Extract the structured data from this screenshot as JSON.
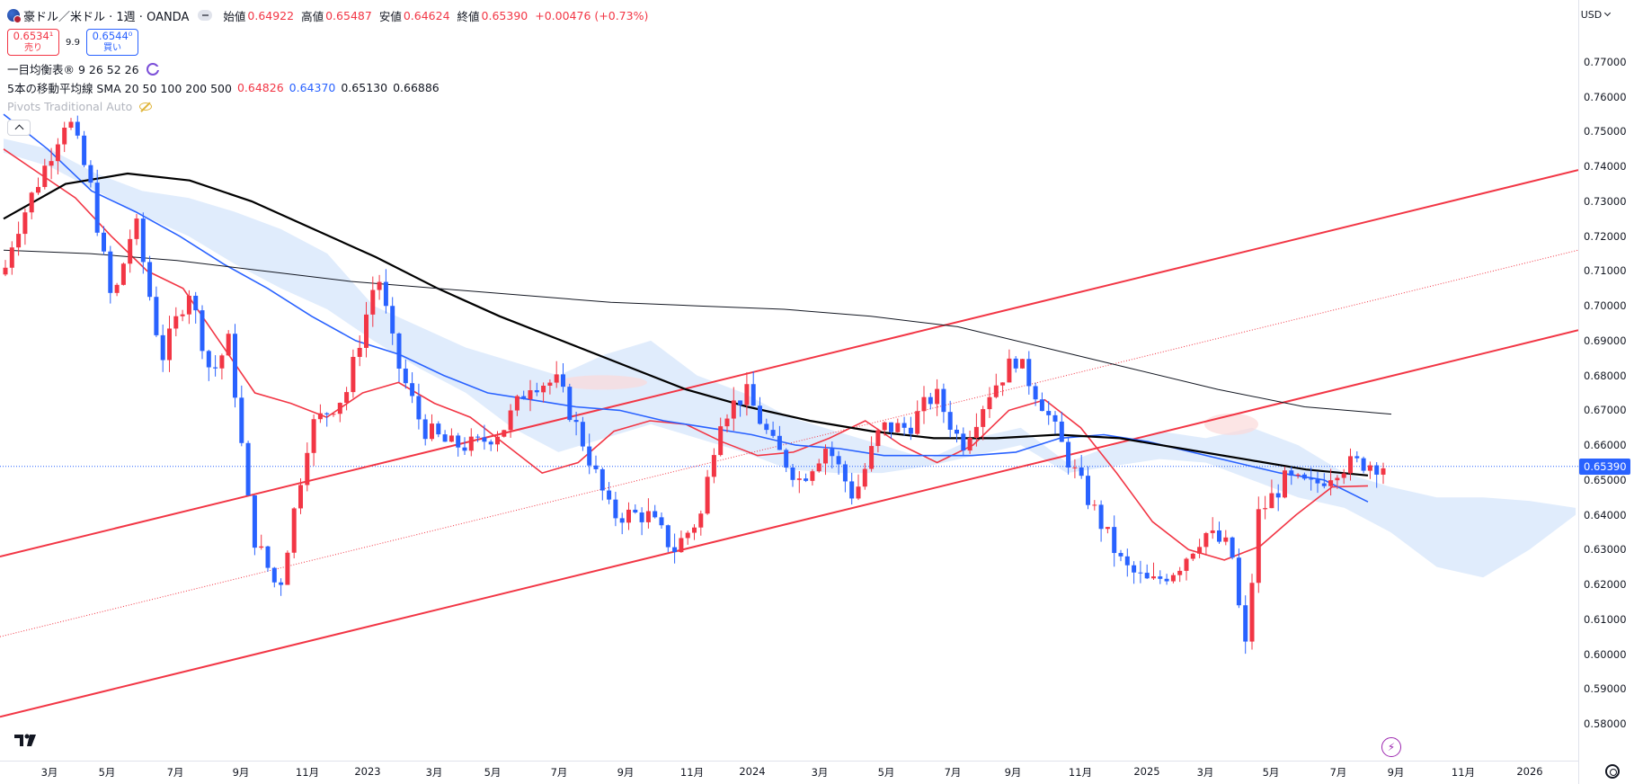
{
  "header": {
    "symbol": "豪ドル／米ドル · 1週 · OANDA",
    "ohlc": {
      "open_label": "始値",
      "open": "0.64922",
      "high_label": "高値",
      "high": "0.65487",
      "low_label": "安値",
      "low": "0.64624",
      "close_label": "終値",
      "close": "0.65390",
      "change": "+0.00476 (+0.73%)"
    }
  },
  "trade": {
    "sell_price": "0.6534¹",
    "sell_label": "売り",
    "spread": "9.9",
    "buy_price": "0.6544⁰",
    "buy_label": "買い"
  },
  "indicators": {
    "ichimoku": "一目均衡表® 9 26 52 26",
    "sma_name": "5本の移動平均線 SMA 20 50 100 200 500",
    "sma_v1": "0.64826",
    "sma_v2": "0.64370",
    "sma_v3": "0.65130",
    "sma_v4": "0.66886",
    "pivots": "Pivots Traditional Auto"
  },
  "price_axis": {
    "currency": "USD",
    "current_price": "0.65390",
    "labels": [
      "0.77000",
      "0.76000",
      "0.75000",
      "0.74000",
      "0.73000",
      "0.72000",
      "0.71000",
      "0.70000",
      "0.69000",
      "0.68000",
      "0.67000",
      "0.66000",
      "0.65000",
      "0.64000",
      "0.63000",
      "0.62000",
      "0.61000",
      "0.60000",
      "0.59000",
      "0.58000"
    ]
  },
  "time_axis": {
    "labels": [
      "3月",
      "5月",
      "7月",
      "9月",
      "11月",
      "2023",
      "3月",
      "5月",
      "7月",
      "9月",
      "11月",
      "2024",
      "3月",
      "5月",
      "7月",
      "9月",
      "11月",
      "2025",
      "3月",
      "5月",
      "7月",
      "9月",
      "11月",
      "2026"
    ]
  },
  "colors": {
    "up": "#f23645",
    "down": "#2962ff",
    "sma20": "#f23645",
    "sma50": "#2962ff",
    "sma100": "#000000",
    "sma200": "#131722",
    "cloud_bull": "#d6e6fb",
    "cloud_bear": "#fbdada",
    "channel": "#f23645"
  },
  "chart_data": {
    "type": "candlestick",
    "title": "豪ドル／米ドル · 1週 · OANDA",
    "ylim": [
      0.575,
      0.78
    ],
    "series": [
      {
        "name": "SMA 20",
        "values": [
          0.745,
          0.738,
          0.731,
          0.72,
          0.71,
          0.705,
          0.69,
          0.675,
          0.672,
          0.668,
          0.675,
          0.678,
          0.672,
          0.668,
          0.66,
          0.652,
          0.655,
          0.664,
          0.667,
          0.666,
          0.661,
          0.657,
          0.658,
          0.662,
          0.667,
          0.66,
          0.655,
          0.66,
          0.67,
          0.673,
          0.665,
          0.652,
          0.638,
          0.63,
          0.627,
          0.631,
          0.64,
          0.648,
          0.6483
        ]
      },
      {
        "name": "SMA 50",
        "values": [
          0.755,
          0.745,
          0.733,
          0.727,
          0.72,
          0.712,
          0.705,
          0.697,
          0.69,
          0.686,
          0.68,
          0.675,
          0.673,
          0.671,
          0.67,
          0.667,
          0.665,
          0.663,
          0.66,
          0.659,
          0.657,
          0.657,
          0.657,
          0.658,
          0.662,
          0.663,
          0.661,
          0.658,
          0.655,
          0.652,
          0.65,
          0.6437
        ]
      },
      {
        "name": "SMA 100",
        "values": [
          0.725,
          0.735,
          0.738,
          0.736,
          0.73,
          0.722,
          0.714,
          0.705,
          0.697,
          0.69,
          0.683,
          0.676,
          0.671,
          0.667,
          0.664,
          0.662,
          0.662,
          0.663,
          0.662,
          0.659,
          0.656,
          0.653,
          0.6513
        ]
      },
      {
        "name": "SMA 200",
        "values": [
          0.716,
          0.715,
          0.713,
          0.71,
          0.707,
          0.705,
          0.703,
          0.701,
          0.7,
          0.699,
          0.697,
          0.694,
          0.688,
          0.682,
          0.676,
          0.671,
          0.6689
        ]
      }
    ],
    "channel": {
      "upper": [
        0.628,
        0.739
      ],
      "mid": [
        0.605,
        0.716
      ],
      "lower": [
        0.582,
        0.693
      ]
    },
    "last_close": 0.6539
  }
}
